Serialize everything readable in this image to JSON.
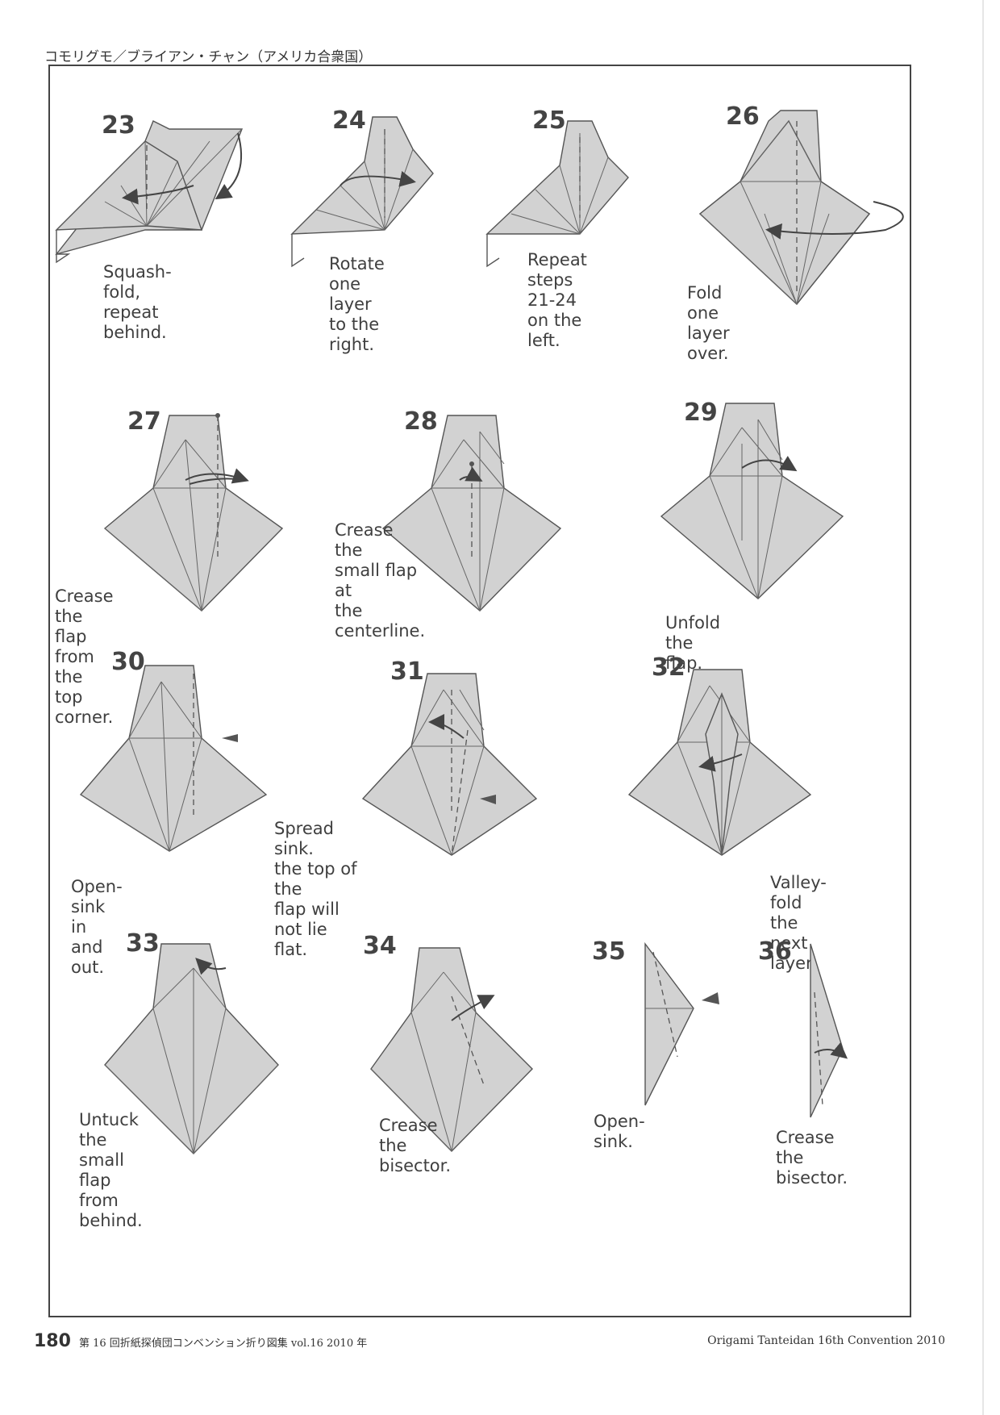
{
  "header": {
    "title": "コモリグモ／ブライアン・チャン（アメリカ合衆国）"
  },
  "steps": [
    {
      "number": "23",
      "caption": "Squash-fold,\nrepeat behind."
    },
    {
      "number": "24",
      "caption": "Rotate one\nlayer to the\nright."
    },
    {
      "number": "25",
      "caption": "Repeat steps\n21-24 on the\nleft."
    },
    {
      "number": "26",
      "caption": "Fold one\nlayer over."
    },
    {
      "number": "27",
      "caption": "Crease the\nflap from the\ntop corner."
    },
    {
      "number": "28",
      "caption": "Crease the\nsmall flap at\nthe centerline."
    },
    {
      "number": "29",
      "caption": "Unfold the flap."
    },
    {
      "number": "30",
      "caption": "Open-sink in and out."
    },
    {
      "number": "31",
      "caption": "Spread sink.\nthe top of the\nflap will not lie flat."
    },
    {
      "number": "32",
      "caption": "Valley-fold\nthe next layer."
    },
    {
      "number": "33",
      "caption": "Untuck the\nsmall flap from behind."
    },
    {
      "number": "34",
      "caption": "Crease the bisector."
    },
    {
      "number": "35",
      "caption": "Open-sink."
    },
    {
      "number": "36",
      "caption": "Crease the\nbisector."
    }
  ],
  "footer": {
    "page_number": "180",
    "publication": "第 16 回折紙探偵団コンベンション折り図集 vol.16 2010 年",
    "right_text": "Origami Tanteidan 16th Convention 2010"
  }
}
